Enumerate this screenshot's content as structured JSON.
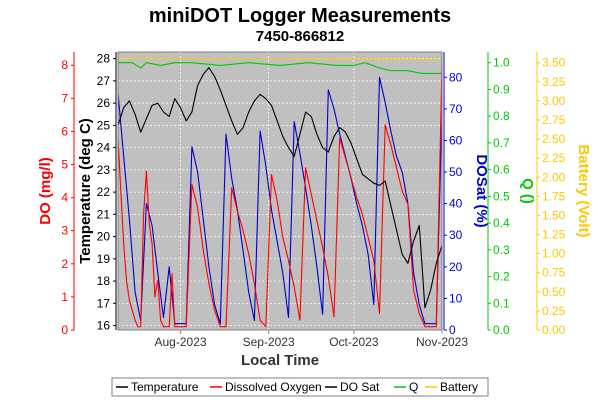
{
  "chart_data": {
    "type": "line",
    "title": "miniDOT Logger Measurements",
    "subtitle": "7450-866812",
    "xlabel": "Local Time",
    "x_ticks": [
      "Aug-2023",
      "Sep-2023",
      "Oct-2023",
      "Nov-2023"
    ],
    "x_range": [
      "2023-07-10",
      "2023-11-01"
    ],
    "grid": true,
    "legend_position": "bottom",
    "axes": [
      {
        "id": "do",
        "label": "DO (mg/l)",
        "side": "left",
        "color": "#ff0000",
        "range": [
          0,
          8.4
        ],
        "ticks": [
          "0",
          "1",
          "2",
          "3",
          "4",
          "5",
          "6",
          "7",
          "8"
        ]
      },
      {
        "id": "temp",
        "label": "Temperature (deg C)",
        "side": "left",
        "color": "#000000",
        "range": [
          15.8,
          28.3
        ],
        "ticks": [
          "16",
          "17",
          "18",
          "19",
          "20",
          "21",
          "22",
          "23",
          "24",
          "25",
          "26",
          "27",
          "28"
        ]
      },
      {
        "id": "dosat",
        "label": "DOSat (%)",
        "side": "right",
        "color": "#0000cc",
        "range": [
          0,
          88
        ],
        "ticks": [
          "0",
          "10",
          "20",
          "30",
          "40",
          "50",
          "60",
          "70",
          "80"
        ]
      },
      {
        "id": "q",
        "label": "Q ()",
        "side": "right",
        "color": "#00cc00",
        "range": [
          0,
          1.04
        ],
        "ticks": [
          "0.0",
          "0.1",
          "0.2",
          "0.3",
          "0.4",
          "0.5",
          "0.6",
          "0.7",
          "0.8",
          "0.9",
          "1.0"
        ]
      },
      {
        "id": "battery",
        "label": "Battery (Volt)",
        "side": "right",
        "color": "#ffc800",
        "range": [
          0,
          3.64
        ],
        "ticks": [
          "0.00",
          "0.25",
          "0.50",
          "0.75",
          "1.00",
          "1.25",
          "1.50",
          "1.75",
          "2.00",
          "2.25",
          "2.50",
          "2.75",
          "3.00",
          "3.25",
          "3.50"
        ]
      }
    ],
    "series": [
      {
        "name": "Temperature",
        "axis": "temp",
        "color": "#000000",
        "x": [
          "2023-07-10",
          "2023-07-12",
          "2023-07-14",
          "2023-07-16",
          "2023-07-18",
          "2023-07-20",
          "2023-07-22",
          "2023-07-24",
          "2023-07-26",
          "2023-07-28",
          "2023-07-30",
          "2023-08-01",
          "2023-08-03",
          "2023-08-05",
          "2023-08-07",
          "2023-08-09",
          "2023-08-11",
          "2023-08-13",
          "2023-08-15",
          "2023-08-17",
          "2023-08-19",
          "2023-08-21",
          "2023-08-23",
          "2023-08-25",
          "2023-08-27",
          "2023-08-29",
          "2023-08-31",
          "2023-09-02",
          "2023-09-04",
          "2023-09-06",
          "2023-09-08",
          "2023-09-10",
          "2023-09-12",
          "2023-09-14",
          "2023-09-16",
          "2023-09-18",
          "2023-09-20",
          "2023-09-22",
          "2023-09-24",
          "2023-09-26",
          "2023-09-28",
          "2023-09-30",
          "2023-10-02",
          "2023-10-04",
          "2023-10-06",
          "2023-10-08",
          "2023-10-10",
          "2023-10-12",
          "2023-10-14",
          "2023-10-16",
          "2023-10-18",
          "2023-10-20",
          "2023-10-22",
          "2023-10-24",
          "2023-10-26",
          "2023-10-28",
          "2023-10-30",
          "2023-11-01"
        ],
        "values": [
          25.0,
          25.8,
          26.1,
          25.5,
          24.7,
          25.3,
          25.9,
          26.0,
          25.6,
          25.4,
          26.2,
          25.8,
          25.2,
          25.6,
          26.8,
          27.3,
          27.6,
          27.2,
          26.6,
          25.9,
          25.2,
          24.6,
          24.9,
          25.6,
          26.1,
          26.4,
          26.2,
          25.9,
          25.2,
          24.5,
          24.0,
          23.6,
          24.6,
          25.6,
          25.4,
          24.6,
          24.0,
          23.8,
          24.5,
          24.9,
          24.7,
          24.2,
          23.5,
          22.8,
          22.6,
          22.4,
          22.3,
          22.5,
          21.4,
          20.3,
          19.2,
          18.8,
          19.8,
          20.5,
          16.8,
          17.6,
          18.8,
          19.6
        ]
      },
      {
        "name": "Dissolved Oxygen",
        "axis": "do",
        "color": "#ff0000",
        "x": [
          "2023-07-10",
          "2023-07-11",
          "2023-07-12",
          "2023-07-13",
          "2023-07-14",
          "2023-07-15",
          "2023-07-16",
          "2023-07-17",
          "2023-07-18",
          "2023-07-19",
          "2023-07-20",
          "2023-07-21",
          "2023-07-22",
          "2023-07-23",
          "2023-07-24",
          "2023-07-25",
          "2023-07-26",
          "2023-07-27",
          "2023-07-28",
          "2023-07-29",
          "2023-07-30",
          "2023-08-01",
          "2023-08-03",
          "2023-08-05",
          "2023-08-07",
          "2023-08-09",
          "2023-08-11",
          "2023-08-13",
          "2023-08-15",
          "2023-08-17",
          "2023-08-19",
          "2023-08-21",
          "2023-08-23",
          "2023-08-25",
          "2023-08-27",
          "2023-08-29",
          "2023-08-31",
          "2023-09-02",
          "2023-09-04",
          "2023-09-06",
          "2023-09-08",
          "2023-09-10",
          "2023-09-12",
          "2023-09-14",
          "2023-09-16",
          "2023-09-18",
          "2023-09-20",
          "2023-09-22",
          "2023-09-24",
          "2023-09-26",
          "2023-09-28",
          "2023-09-30",
          "2023-10-02",
          "2023-10-04",
          "2023-10-06",
          "2023-10-08",
          "2023-10-10",
          "2023-10-12",
          "2023-10-14",
          "2023-10-16",
          "2023-10-18",
          "2023-10-20",
          "2023-10-22",
          "2023-10-24",
          "2023-10-26",
          "2023-10-28",
          "2023-10-30",
          "2023-11-01"
        ],
        "values": [
          5.8,
          4.2,
          2.6,
          1.5,
          0.9,
          0.6,
          0.3,
          0.1,
          0.1,
          3.5,
          4.8,
          3.2,
          2.6,
          1.0,
          1.5,
          0.3,
          0.1,
          0.1,
          0.1,
          1.7,
          0.1,
          0.1,
          0.1,
          4.4,
          3.7,
          2.4,
          1.4,
          0.6,
          0.1,
          0.1,
          4.3,
          3.6,
          3.0,
          2.3,
          1.4,
          0.3,
          0.1,
          4.7,
          3.9,
          2.8,
          2.1,
          1.3,
          0.3,
          4.9,
          4.1,
          3.3,
          2.5,
          1.6,
          0.4,
          5.8,
          5.2,
          4.6,
          4.0,
          3.5,
          2.8,
          2.1,
          0.5,
          6.2,
          5.6,
          4.9,
          4.2,
          3.8,
          1.2,
          0.5,
          0.1,
          0.1,
          0.1,
          8.0
        ]
      },
      {
        "name": "DO Sat",
        "axis": "dosat",
        "color": "#0000cc",
        "x": [
          "2023-07-10",
          "2023-07-12",
          "2023-07-14",
          "2023-07-16",
          "2023-07-18",
          "2023-07-20",
          "2023-07-22",
          "2023-07-24",
          "2023-07-26",
          "2023-07-28",
          "2023-07-30",
          "2023-08-01",
          "2023-08-03",
          "2023-08-05",
          "2023-08-07",
          "2023-08-09",
          "2023-08-11",
          "2023-08-13",
          "2023-08-15",
          "2023-08-17",
          "2023-08-19",
          "2023-08-21",
          "2023-08-23",
          "2023-08-25",
          "2023-08-27",
          "2023-08-29",
          "2023-08-31",
          "2023-09-02",
          "2023-09-04",
          "2023-09-06",
          "2023-09-08",
          "2023-09-10",
          "2023-09-12",
          "2023-09-14",
          "2023-09-16",
          "2023-09-18",
          "2023-09-20",
          "2023-09-22",
          "2023-09-24",
          "2023-09-26",
          "2023-09-28",
          "2023-09-30",
          "2023-10-02",
          "2023-10-04",
          "2023-10-06",
          "2023-10-08",
          "2023-10-10",
          "2023-10-12",
          "2023-10-14",
          "2023-10-16",
          "2023-10-18",
          "2023-10-20",
          "2023-10-22",
          "2023-10-24",
          "2023-10-26",
          "2023-10-28",
          "2023-10-30",
          "2023-11-01"
        ],
        "values": [
          75,
          55,
          35,
          12,
          3,
          40,
          33,
          18,
          4,
          20,
          2,
          2,
          2,
          58,
          50,
          35,
          20,
          8,
          2,
          62,
          48,
          38,
          25,
          12,
          3,
          63,
          52,
          38,
          28,
          18,
          4,
          66,
          56,
          45,
          33,
          20,
          5,
          76,
          70,
          62,
          55,
          48,
          40,
          33,
          24,
          8,
          80,
          72,
          63,
          55,
          50,
          40,
          18,
          8,
          2,
          2,
          2,
          70
        ]
      },
      {
        "name": "Q",
        "axis": "q",
        "color": "#00cc00",
        "x": [
          "2023-07-10",
          "2023-07-15",
          "2023-07-18",
          "2023-07-20",
          "2023-07-25",
          "2023-07-30",
          "2023-08-05",
          "2023-08-15",
          "2023-08-25",
          "2023-09-05",
          "2023-09-15",
          "2023-09-25",
          "2023-10-01",
          "2023-10-05",
          "2023-10-10",
          "2023-10-14",
          "2023-10-20",
          "2023-10-25",
          "2023-11-01"
        ],
        "values": [
          1.0,
          1.0,
          0.98,
          1.0,
          0.99,
          1.0,
          1.0,
          0.99,
          1.0,
          0.99,
          1.0,
          0.99,
          0.99,
          1.0,
          0.98,
          0.97,
          0.97,
          0.96,
          0.96
        ]
      },
      {
        "name": "Battery",
        "axis": "battery",
        "color": "#ffc800",
        "x": [
          "2023-07-10",
          "2023-11-01"
        ],
        "values": [
          3.56,
          3.54
        ]
      }
    ]
  }
}
